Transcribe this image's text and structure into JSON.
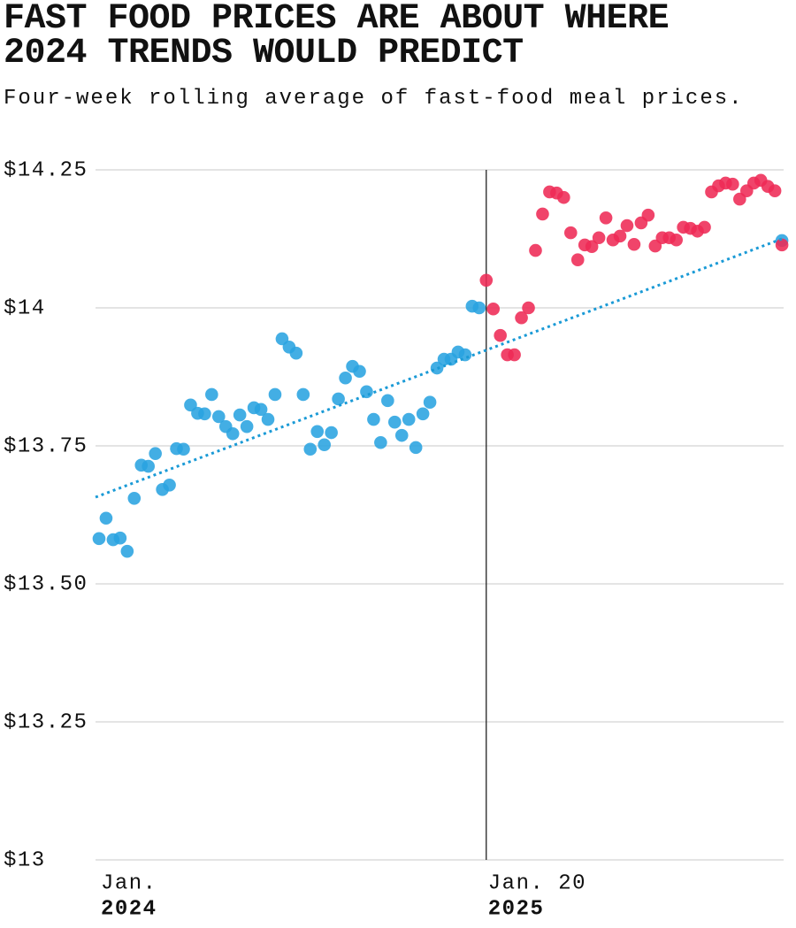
{
  "chart_data": {
    "type": "scatter",
    "title": "FAST FOOD PRICES ARE ABOUT WHERE 2024 TRENDS WOULD PREDICT",
    "subtitle": "Four-week rolling average of fast-food meal prices.",
    "xlim": [
      -0.5,
      97.24
    ],
    "xticks": [
      {
        "value": 0,
        "label": "Jan.",
        "year": "2024"
      },
      {
        "value": 55,
        "label": "Jan. 20",
        "year": "2025"
      }
    ],
    "ylim": [
      13,
      14.25
    ],
    "yticks": [
      {
        "value": 13,
        "label": "$13"
      },
      {
        "value": 13.25,
        "label": "$13.25"
      },
      {
        "value": 13.5,
        "label": "$13.50"
      },
      {
        "value": 13.75,
        "label": "$13.75"
      },
      {
        "value": 14,
        "label": "$14"
      },
      {
        "value": 14.25,
        "label": "$14.25"
      }
    ],
    "grid": true,
    "series": [
      {
        "type": "scatter",
        "color": "#29a3e0",
        "x": [
          0,
          1,
          2,
          3,
          4,
          5,
          6,
          7,
          8,
          9,
          10,
          11,
          12,
          13,
          14,
          15,
          16,
          17,
          18,
          19,
          20,
          21,
          22,
          23,
          24,
          25,
          26,
          27,
          28,
          29,
          30,
          31,
          32,
          33,
          34,
          35,
          36,
          37,
          38,
          39,
          40,
          41,
          42,
          43,
          44,
          45,
          46,
          47,
          48,
          49,
          50,
          51,
          52,
          53,
          54,
          97
        ],
        "values": [
          13.582,
          13.619,
          13.58,
          13.583,
          13.559,
          13.655,
          13.715,
          13.713,
          13.736,
          13.671,
          13.679,
          13.745,
          13.744,
          13.824,
          13.809,
          13.808,
          13.843,
          13.803,
          13.785,
          13.772,
          13.806,
          13.785,
          13.819,
          13.816,
          13.798,
          13.843,
          13.944,
          13.929,
          13.918,
          13.843,
          13.744,
          13.776,
          13.752,
          13.774,
          13.835,
          13.873,
          13.894,
          13.885,
          13.848,
          13.798,
          13.756,
          13.832,
          13.793,
          13.769,
          13.798,
          13.747,
          13.808,
          13.829,
          13.891,
          13.907,
          13.907,
          13.92,
          13.915,
          14.003,
          14.0,
          14.122
        ]
      },
      {
        "type": "scatter",
        "color": "#ee2a55",
        "x": [
          55,
          56,
          57,
          58,
          59,
          60,
          61,
          62,
          63,
          64,
          65,
          66,
          67,
          68,
          69,
          70,
          71,
          72,
          73,
          74,
          75,
          76,
          77,
          78,
          79,
          80,
          81,
          82,
          83,
          84,
          85,
          86,
          87,
          88,
          89,
          90,
          91,
          92,
          93,
          94,
          95,
          96,
          97
        ],
        "values": [
          14.05,
          13.998,
          13.95,
          13.915,
          13.915,
          13.982,
          14.0,
          14.104,
          14.17,
          14.21,
          14.208,
          14.2,
          14.136,
          14.087,
          14.114,
          14.111,
          14.127,
          14.163,
          14.123,
          14.13,
          14.149,
          14.115,
          14.154,
          14.168,
          14.112,
          14.127,
          14.127,
          14.123,
          14.146,
          14.144,
          14.139,
          14.146,
          14.21,
          14.221,
          14.226,
          14.224,
          14.197,
          14.212,
          14.226,
          14.231,
          14.22,
          14.212,
          14.114
        ]
      },
      {
        "type": "line",
        "style": "dotted",
        "color": "#1a9ad6",
        "x": [
          -0.5,
          97
        ],
        "values": [
          13.657,
          14.125
        ]
      }
    ]
  }
}
